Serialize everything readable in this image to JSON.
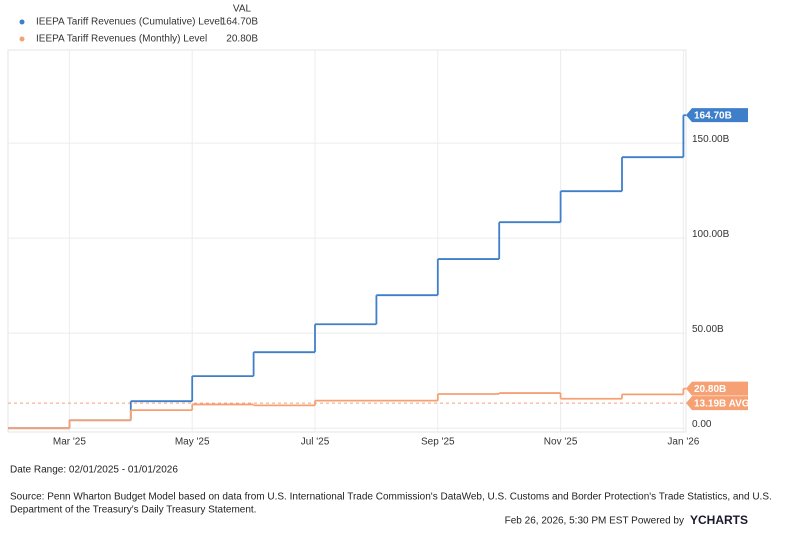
{
  "chart_data": {
    "type": "step",
    "legend_header": "VAL",
    "categories": [
      null,
      "Mar '25",
      null,
      "May '25",
      null,
      "Jul '25",
      null,
      "Sep '25",
      null,
      "Nov '25",
      null,
      "Jan '26"
    ],
    "series": [
      {
        "name": "IEEPA Tariff Revenues (Cumulative) Level",
        "color": "#3f7fc9",
        "values": [
          0,
          4.2,
          14.2,
          27.4,
          40.0,
          54.7,
          70.0,
          89.0,
          108.4,
          124.7,
          142.6,
          164.7
        ],
        "value_labels": [
          null,
          null,
          null,
          null,
          null,
          null,
          null,
          null,
          null,
          null,
          null,
          "164.70B"
        ]
      },
      {
        "name": "IEEPA Tariff Revenues (Monthly) Level",
        "color": "#f5a173",
        "values": [
          0,
          4.2,
          9.5,
          12.5,
          12.0,
          14.5,
          14.5,
          18.0,
          18.5,
          15.5,
          17.8,
          20.8
        ],
        "value_labels": [
          null,
          null,
          null,
          null,
          null,
          null,
          null,
          null,
          null,
          null,
          null,
          "20.80B"
        ]
      }
    ],
    "average": {
      "value": 13.19,
      "label": "13.19B AVG",
      "color": "#f5a173"
    },
    "ylim": [
      -2,
      199
    ],
    "yticks": [
      {
        "value": 0,
        "label": "0.00"
      },
      {
        "value": 50,
        "label": "50.00B"
      },
      {
        "value": 100,
        "label": "100.00B"
      },
      {
        "value": 150,
        "label": "150.00B"
      }
    ],
    "grid": true,
    "date_range": "Date Range: 02/01/2025 - 01/01/2026",
    "source": "Source: Penn Wharton Budget Model based on data from U.S. International Trade Commission's DataWeb, U.S. Customs and Border Protection's Trade Statistics, and U.S.",
    "source_cont": "Department of the Treasury's Daily Treasury Statement.",
    "timestamp": "Feb 26, 2026, 5:30 PM EST Powered by",
    "brand": "YCHARTS"
  }
}
